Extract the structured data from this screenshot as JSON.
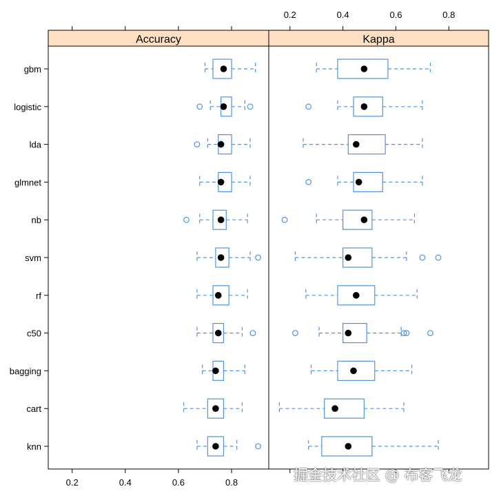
{
  "chart_data": {
    "type": "boxplot",
    "models": [
      "gbm",
      "logistic",
      "lda",
      "glmnet",
      "nb",
      "svm",
      "rf",
      "c50",
      "bagging",
      "cart",
      "knn"
    ],
    "panels": [
      {
        "title": "Accuracy",
        "ticks": [
          "0.2",
          "0.4",
          "0.6",
          "0.8"
        ],
        "xlim": [
          0.11,
          0.94
        ],
        "stats": [
          {
            "model": "gbm",
            "wlo": 0.7,
            "q1": 0.73,
            "med": 0.77,
            "q3": 0.8,
            "whi": 0.89,
            "out": []
          },
          {
            "model": "logistic",
            "wlo": 0.72,
            "q1": 0.76,
            "med": 0.77,
            "q3": 0.8,
            "whi": 0.85,
            "out": [
              0.68,
              0.87
            ]
          },
          {
            "model": "lda",
            "wlo": 0.71,
            "q1": 0.75,
            "med": 0.76,
            "q3": 0.8,
            "whi": 0.87,
            "out": [
              0.67
            ]
          },
          {
            "model": "glmnet",
            "wlo": 0.68,
            "q1": 0.75,
            "med": 0.76,
            "q3": 0.8,
            "whi": 0.87,
            "out": []
          },
          {
            "model": "nb",
            "wlo": 0.68,
            "q1": 0.73,
            "med": 0.76,
            "q3": 0.78,
            "whi": 0.86,
            "out": [
              0.63
            ]
          },
          {
            "model": "svm",
            "wlo": 0.67,
            "q1": 0.74,
            "med": 0.76,
            "q3": 0.79,
            "whi": 0.87,
            "out": [
              0.9
            ]
          },
          {
            "model": "rf",
            "wlo": 0.67,
            "q1": 0.73,
            "med": 0.75,
            "q3": 0.79,
            "whi": 0.86,
            "out": []
          },
          {
            "model": "c50",
            "wlo": 0.67,
            "q1": 0.73,
            "med": 0.75,
            "q3": 0.77,
            "whi": 0.84,
            "out": [
              0.88
            ]
          },
          {
            "model": "bagging",
            "wlo": 0.69,
            "q1": 0.73,
            "med": 0.74,
            "q3": 0.77,
            "whi": 0.85,
            "out": []
          },
          {
            "model": "cart",
            "wlo": 0.62,
            "q1": 0.71,
            "med": 0.74,
            "q3": 0.77,
            "whi": 0.84,
            "out": []
          },
          {
            "model": "knn",
            "wlo": 0.67,
            "q1": 0.71,
            "med": 0.74,
            "q3": 0.77,
            "whi": 0.82,
            "out": [
              0.9
            ]
          }
        ]
      },
      {
        "title": "Kappa",
        "ticks": [
          "0.2",
          "0.4",
          "0.6",
          "0.8"
        ],
        "xlim": [
          0.12,
          0.95
        ],
        "stats": [
          {
            "model": "gbm",
            "wlo": 0.3,
            "q1": 0.38,
            "med": 0.48,
            "q3": 0.57,
            "whi": 0.73,
            "out": []
          },
          {
            "model": "logistic",
            "wlo": 0.38,
            "q1": 0.44,
            "med": 0.48,
            "q3": 0.55,
            "whi": 0.7,
            "out": [
              0.27
            ]
          },
          {
            "model": "lda",
            "wlo": 0.25,
            "q1": 0.42,
            "med": 0.45,
            "q3": 0.56,
            "whi": 0.7,
            "out": []
          },
          {
            "model": "glmnet",
            "wlo": 0.38,
            "q1": 0.44,
            "med": 0.46,
            "q3": 0.55,
            "whi": 0.7,
            "out": [
              0.27
            ]
          },
          {
            "model": "nb",
            "wlo": 0.3,
            "q1": 0.4,
            "med": 0.48,
            "q3": 0.51,
            "whi": 0.67,
            "out": [
              0.18
            ]
          },
          {
            "model": "svm",
            "wlo": 0.22,
            "q1": 0.4,
            "med": 0.42,
            "q3": 0.51,
            "whi": 0.64,
            "out": [
              0.7,
              0.76
            ]
          },
          {
            "model": "rf",
            "wlo": 0.26,
            "q1": 0.38,
            "med": 0.45,
            "q3": 0.52,
            "whi": 0.68,
            "out": []
          },
          {
            "model": "c50",
            "wlo": 0.31,
            "q1": 0.4,
            "med": 0.42,
            "q3": 0.49,
            "whi": 0.62,
            "out": [
              0.22,
              0.63,
              0.64,
              0.73
            ]
          },
          {
            "model": "bagging",
            "wlo": 0.28,
            "q1": 0.38,
            "med": 0.44,
            "q3": 0.52,
            "whi": 0.66,
            "out": []
          },
          {
            "model": "cart",
            "wlo": 0.16,
            "q1": 0.33,
            "med": 0.37,
            "q3": 0.48,
            "whi": 0.63,
            "out": []
          },
          {
            "model": "knn",
            "wlo": 0.27,
            "q1": 0.32,
            "med": 0.42,
            "q3": 0.51,
            "whi": 0.76,
            "out": []
          }
        ]
      }
    ],
    "colors": {
      "box": "#4e92e0",
      "median": "#000000",
      "strip": "#ffe0c2",
      "frame": "#000000"
    },
    "grid": false
  },
  "watermark": "掘金技术社区 @ 布客飞龙"
}
